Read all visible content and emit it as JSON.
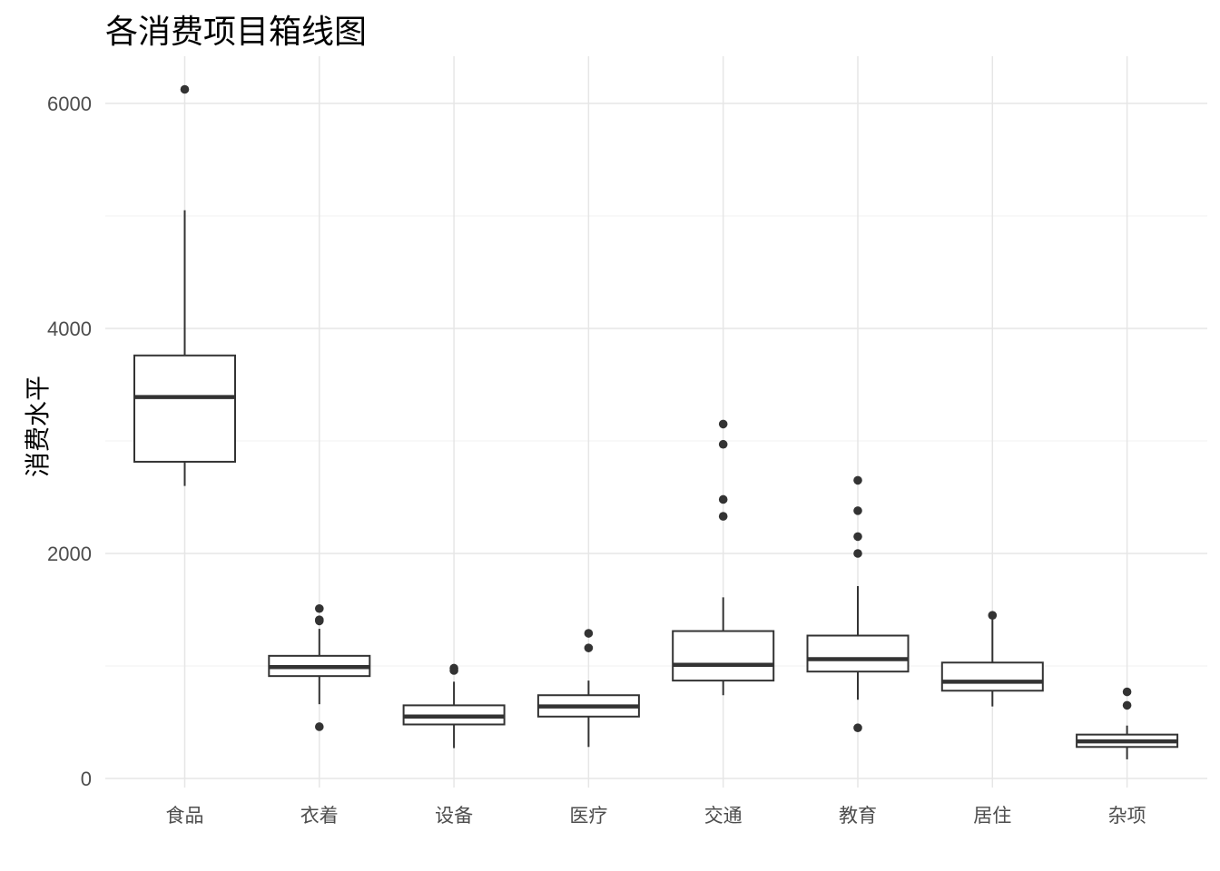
{
  "chart_data": {
    "type": "box",
    "title": "各消费项目箱线图",
    "xlabel": "",
    "ylabel": "消费水平",
    "ylim": [
      -100,
      6400
    ],
    "yticks": [
      0,
      2000,
      4000,
      6000
    ],
    "grid": true,
    "categories": [
      "食品",
      "衣着",
      "设备",
      "医疗",
      "交通",
      "教育",
      "居住",
      "杂项"
    ],
    "boxes": [
      {
        "category": "食品",
        "whisker_low": 2600,
        "q1": 2815,
        "median": 3390,
        "q3": 3760,
        "whisker_high": 5050,
        "outliers": [
          6125
        ]
      },
      {
        "category": "衣着",
        "whisker_low": 660,
        "q1": 910,
        "median": 990,
        "q3": 1090,
        "whisker_high": 1330,
        "outliers": [
          460,
          1400,
          1410,
          1510
        ]
      },
      {
        "category": "设备",
        "whisker_low": 270,
        "q1": 480,
        "median": 550,
        "q3": 650,
        "whisker_high": 860,
        "outliers": [
          960,
          980
        ]
      },
      {
        "category": "医疗",
        "whisker_low": 280,
        "q1": 550,
        "median": 640,
        "q3": 740,
        "whisker_high": 870,
        "outliers": [
          1160,
          1290
        ]
      },
      {
        "category": "交通",
        "whisker_low": 740,
        "q1": 870,
        "median": 1010,
        "q3": 1310,
        "whisker_high": 1610,
        "outliers": [
          2330,
          2480,
          2970,
          3150
        ]
      },
      {
        "category": "教育",
        "whisker_low": 700,
        "q1": 950,
        "median": 1060,
        "q3": 1270,
        "whisker_high": 1710,
        "outliers": [
          450,
          2000,
          2150,
          2380,
          2650
        ]
      },
      {
        "category": "居住",
        "whisker_low": 640,
        "q1": 780,
        "median": 860,
        "q3": 1030,
        "whisker_high": 1440,
        "outliers": [
          1450
        ]
      },
      {
        "category": "杂项",
        "whisker_low": 170,
        "q1": 280,
        "median": 330,
        "q3": 390,
        "whisker_high": 470,
        "outliers": [
          650,
          770
        ]
      }
    ]
  }
}
